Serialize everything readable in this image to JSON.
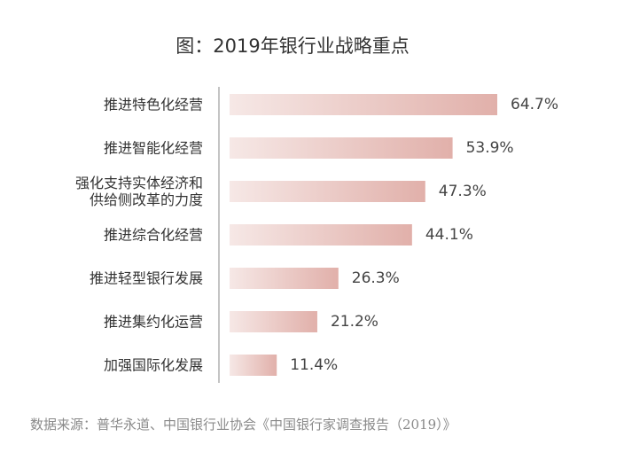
{
  "chart_data": {
    "type": "bar",
    "orientation": "horizontal",
    "title": "图：2019年银行业战略重点",
    "categories": [
      [
        "推进特色化经营"
      ],
      [
        "推进智能化经营"
      ],
      [
        "强化支持实体经济和",
        "供给侧改革的力度"
      ],
      [
        "推进综合化经营"
      ],
      [
        "推进轻型银行发展"
      ],
      [
        "推进集约化运营"
      ],
      [
        "加强国际化发展"
      ]
    ],
    "values": [
      64.7,
      53.9,
      47.3,
      44.1,
      26.3,
      21.2,
      11.4
    ],
    "value_labels": [
      "64.7%",
      "53.9%",
      "47.3%",
      "44.1%",
      "26.3%",
      "21.2%",
      "11.4%"
    ],
    "unit": "%",
    "xlim": [
      0,
      100
    ],
    "grid": false,
    "colors": {
      "bar_start": "#f6e8e6",
      "bar_end": "#e1b0aa",
      "axis": "#888888"
    }
  },
  "source": "数据来源：普华永道、中国银行业协会《中国银行家调查报告（2019）》"
}
